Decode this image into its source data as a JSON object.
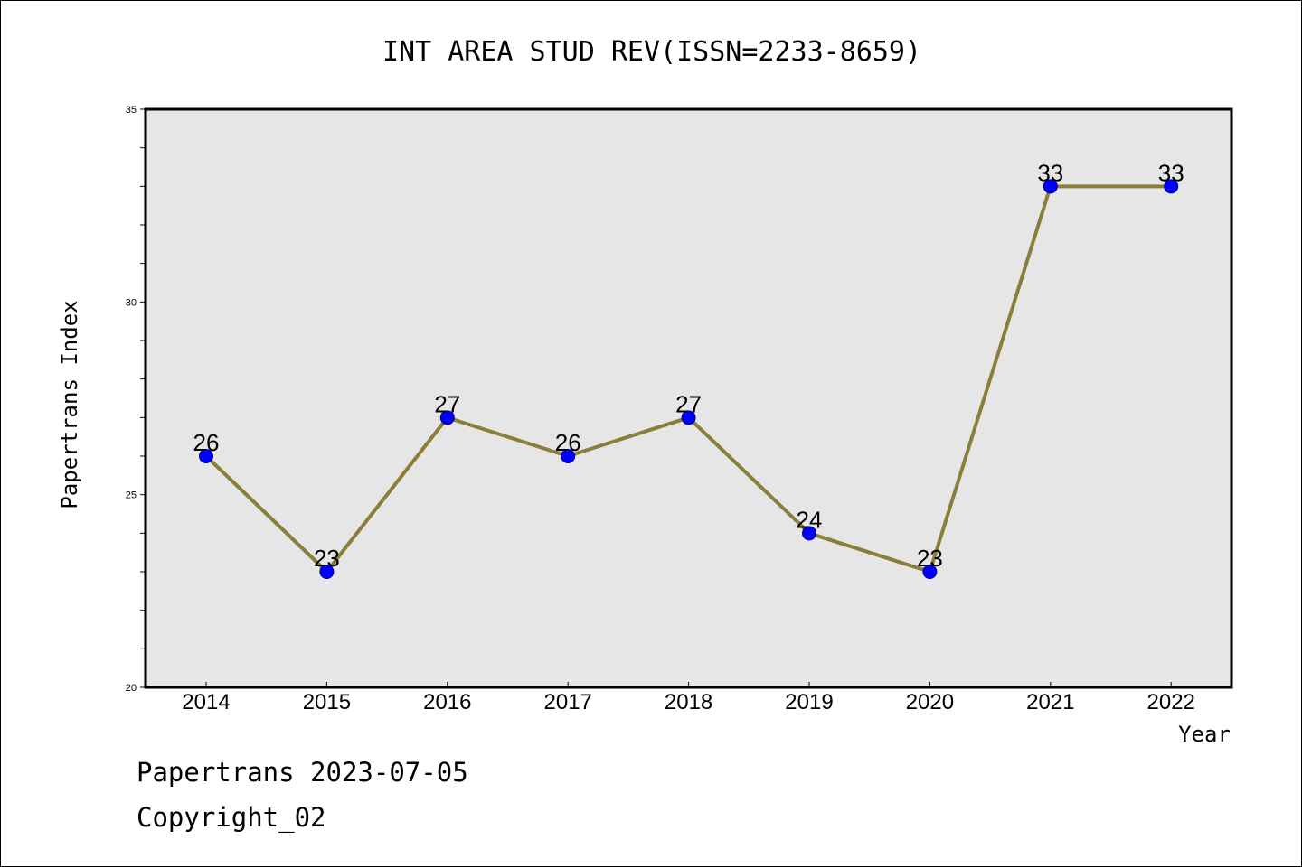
{
  "chart_data": {
    "type": "line",
    "title": "INT AREA STUD REV(ISSN=2233-8659)",
    "xlabel": "Year",
    "ylabel": "Papertrans Index",
    "categories": [
      "2014",
      "2015",
      "2016",
      "2017",
      "2018",
      "2019",
      "2020",
      "2021",
      "2022"
    ],
    "series": [
      {
        "values": [
          26,
          23,
          27,
          26,
          27,
          24,
          23,
          33,
          33
        ]
      }
    ],
    "ylim": [
      20,
      35
    ],
    "yticks": [
      "20",
      "25",
      "30",
      "35"
    ],
    "grid": false,
    "legend": "none",
    "colors": {
      "line": "#8b7d3a",
      "marker": "#0000ff",
      "plot_background": "#e6e6e6"
    }
  },
  "footer": {
    "line1": "Papertrans 2023-07-05",
    "line2": "Copyright_02"
  }
}
